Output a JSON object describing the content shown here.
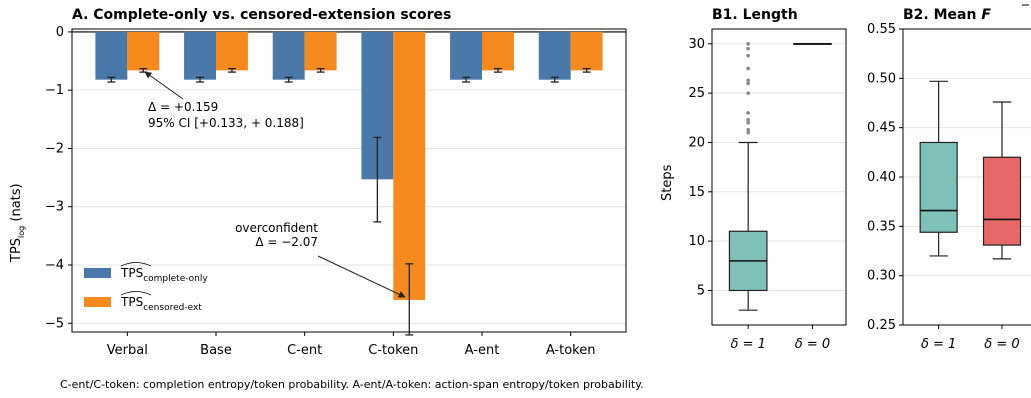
{
  "caption": "C-ent/C-token: completion entropy/token probability. A-ent/A-token: action-span entropy/token probability.",
  "chart_data": [
    {
      "type": "bar",
      "title": "A. Complete-only vs. censored-extension scores",
      "ylabel": "TPS",
      "ylabel_sub": "log",
      "ylabel_unit": " (nats)",
      "ylim": [
        -5.15,
        0.05
      ],
      "yticks": [
        0,
        -1,
        -2,
        -3,
        -4,
        -5
      ],
      "ytick_labels": [
        "0",
        "−1",
        "−2",
        "−3",
        "−4",
        "−5"
      ],
      "categories": [
        "Verbal",
        "Base",
        "C-ent",
        "C-token",
        "A-ent",
        "A-token"
      ],
      "grid": true,
      "legend_position": "lower-left",
      "series": [
        {
          "name": "TPS",
          "name_sub": "complete-only",
          "color": "#4a78a8",
          "values": [
            -0.82,
            -0.82,
            -0.82,
            -2.53,
            -0.82,
            -0.82
          ],
          "err_low": [
            -0.86,
            -0.86,
            -0.86,
            -3.26,
            -0.86,
            -0.86
          ],
          "err_high": [
            -0.78,
            -0.78,
            -0.78,
            -1.81,
            -0.78,
            -0.78
          ]
        },
        {
          "name": "TPS",
          "name_sub": "censored-ext",
          "color": "#f58a1f",
          "values": [
            -0.66,
            -0.66,
            -0.66,
            -4.6,
            -0.66,
            -0.66
          ],
          "err_low": [
            -0.69,
            -0.69,
            -0.69,
            -5.2,
            -0.69,
            -0.69
          ],
          "err_high": [
            -0.63,
            -0.63,
            -0.63,
            -3.98,
            -0.63,
            -0.63
          ]
        }
      ],
      "annotations": [
        {
          "lines": [
            "Δ = +0.159",
            "95% CI [+0.133, + 0.188]"
          ],
          "target_category": "Verbal",
          "target_series": 1
        },
        {
          "lines": [
            "overconfident",
            "Δ = −2.07"
          ],
          "target_category": "C-token",
          "target_series": 1
        }
      ]
    },
    {
      "type": "box",
      "title": "B1. Length",
      "ylabel": "Steps",
      "ylim": [
        1.5,
        31.5
      ],
      "yticks": [
        5,
        10,
        15,
        20,
        25,
        30
      ],
      "categories": [
        "δ = 1",
        "δ = 0"
      ],
      "grid": true,
      "boxes": [
        {
          "whislo": 3,
          "q1": 5,
          "med": 8,
          "q3": 11,
          "whishi": 20,
          "color": "#7fc0b8",
          "fliers": [
            21,
            21.3,
            22,
            22.3,
            23,
            25,
            26,
            26.3,
            27.5,
            28.8,
            29.5,
            30
          ]
        },
        {
          "whislo": 30,
          "q1": 30,
          "med": 30,
          "q3": 30,
          "whishi": 30,
          "color": "#7fc0b8",
          "fliers": []
        }
      ]
    },
    {
      "type": "box",
      "title": "B2. Mean",
      "title_symbol": "F",
      "ylim": [
        0.25,
        0.55
      ],
      "yticks": [
        0.25,
        0.3,
        0.35,
        0.4,
        0.45,
        0.5,
        0.55
      ],
      "ytick_labels": [
        "0.25",
        "0.30",
        "0.35",
        "0.40",
        "0.45",
        "0.50",
        "0.55"
      ],
      "categories": [
        "δ = 1",
        "δ = 0"
      ],
      "grid": true,
      "boxes": [
        {
          "whislo": 0.32,
          "q1": 0.344,
          "med": 0.366,
          "q3": 0.435,
          "whishi": 0.497,
          "color": "#7fc0b8",
          "fliers": []
        },
        {
          "whislo": 0.317,
          "q1": 0.331,
          "med": 0.357,
          "q3": 0.42,
          "whishi": 0.476,
          "color": "#e8686a",
          "fliers": []
        }
      ]
    }
  ]
}
